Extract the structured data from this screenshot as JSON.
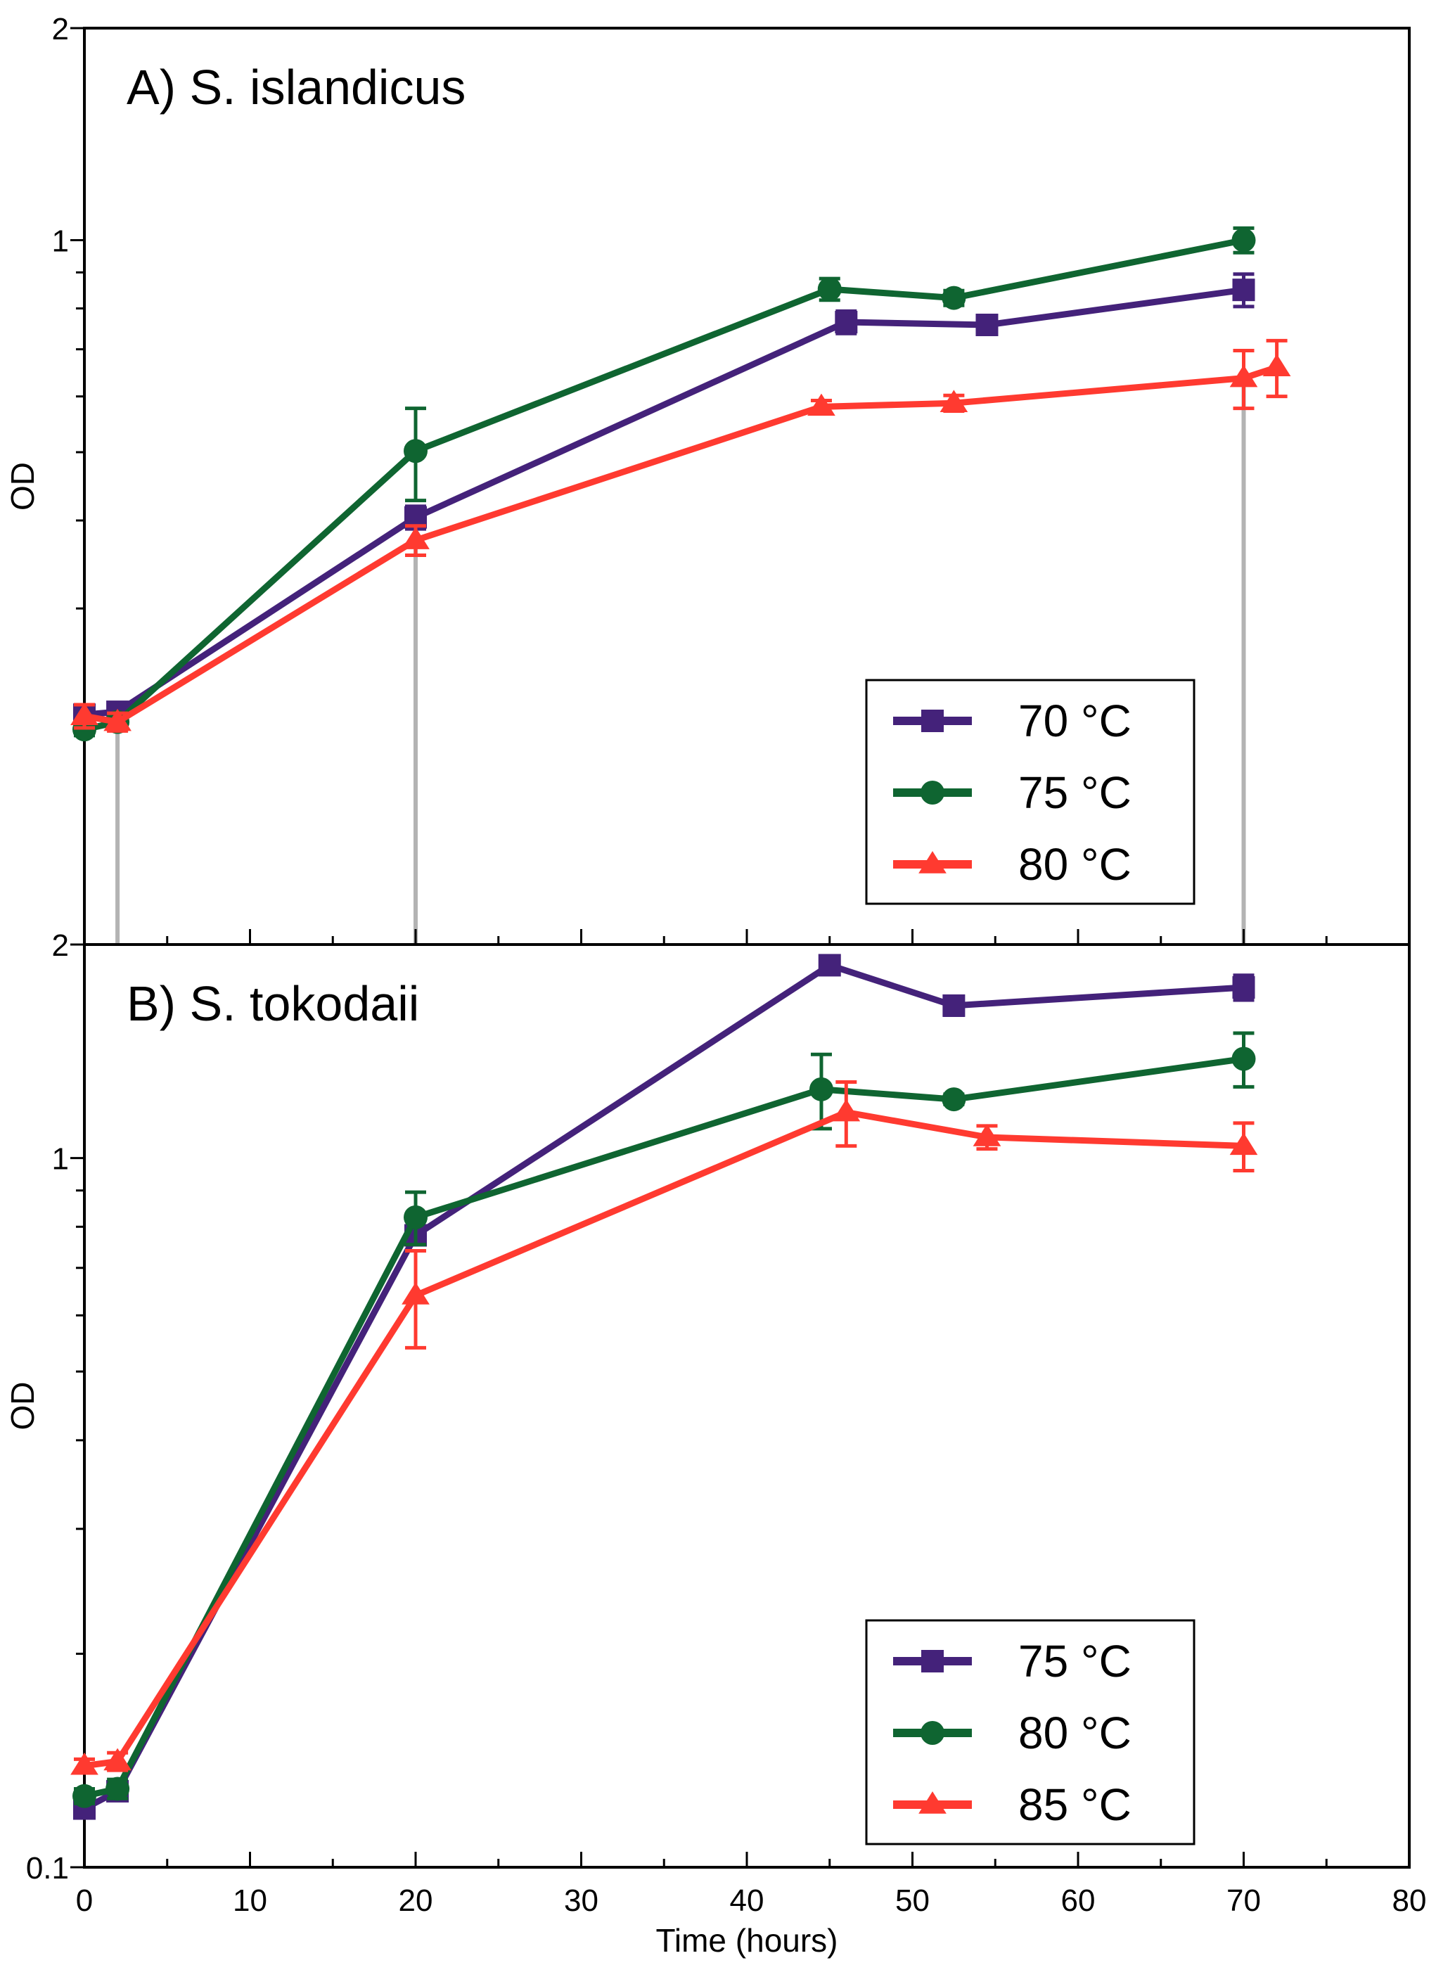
{
  "colors": {
    "series_purple": "#44227a",
    "series_green": "#0f6531",
    "series_red": "#ff3a30",
    "guide_gray": "#b3b3b3",
    "axis": "#000000"
  },
  "guide_lines_x": [
    2,
    20,
    70
  ],
  "chart_data": [
    {
      "type": "line",
      "title": "A) S. islandicus",
      "xlabel": "",
      "ylabel": "OD",
      "xlim": [
        0,
        80
      ],
      "ylim": [
        0.1,
        2
      ],
      "y_scale": "log",
      "yticks": [
        {
          "v": 1,
          "label": "1"
        },
        {
          "v": 2,
          "label": "2"
        }
      ],
      "legend_position": "bottom-right",
      "series": [
        {
          "name": "70 °C",
          "marker": "square",
          "color_key": "series_purple",
          "points": [
            {
              "x": 0,
              "y": 0.212,
              "err": 0.006
            },
            {
              "x": 2,
              "y": 0.214,
              "err": 0.006
            },
            {
              "x": 20,
              "y": 0.404,
              "err": 0.015
            },
            {
              "x": 46,
              "y": 0.765,
              "err": 0.028
            },
            {
              "x": 54.5,
              "y": 0.758,
              "err": 0.022
            },
            {
              "x": 70,
              "y": 0.85,
              "err": 0.045
            }
          ]
        },
        {
          "name": "75 °C",
          "marker": "circle",
          "color_key": "series_green",
          "points": [
            {
              "x": 0,
              "y": 0.202,
              "err": 0.004
            },
            {
              "x": 2,
              "y": 0.207,
              "err": 0.004
            },
            {
              "x": 20,
              "y": 0.502,
              "err": 0.075
            },
            {
              "x": 45,
              "y": 0.852,
              "err": 0.03
            },
            {
              "x": 52.5,
              "y": 0.828,
              "err": 0.02
            },
            {
              "x": 70,
              "y": 1.0,
              "err": 0.04
            }
          ]
        },
        {
          "name": "80 °C",
          "marker": "triangle",
          "color_key": "series_red",
          "points": [
            {
              "x": 0,
              "y": 0.211,
              "err": 0.008
            },
            {
              "x": 2,
              "y": 0.207,
              "err": 0.006
            },
            {
              "x": 20,
              "y": 0.375,
              "err": 0.018
            },
            {
              "x": 44.5,
              "y": 0.58,
              "err": 0.012
            },
            {
              "x": 52.5,
              "y": 0.587,
              "err": 0.015
            },
            {
              "x": 70,
              "y": 0.637,
              "err": 0.06
            },
            {
              "x": 72,
              "y": 0.66,
              "err": 0.06
            }
          ]
        }
      ]
    },
    {
      "type": "line",
      "title": "B) S. tokodaii",
      "xlabel": "Time (hours)",
      "ylabel": "OD",
      "xlim": [
        0,
        80
      ],
      "ylim": [
        0.1,
        2
      ],
      "y_scale": "log",
      "xticks": [
        0,
        10,
        20,
        30,
        40,
        50,
        60,
        70,
        80
      ],
      "yticks": [
        {
          "v": 0.1,
          "label": "0.1"
        },
        {
          "v": 1,
          "label": "1"
        },
        {
          "v": 2,
          "label": "2"
        }
      ],
      "legend_position": "bottom-right",
      "series": [
        {
          "name": "75 °C",
          "marker": "square",
          "color_key": "series_purple",
          "points": [
            {
              "x": 0,
              "y": 0.121,
              "err": 0.002
            },
            {
              "x": 2,
              "y": 0.128,
              "err": 0.003
            },
            {
              "x": 20,
              "y": 0.778,
              "err": 0.01
            },
            {
              "x": 45,
              "y": 1.87,
              "err": 0.03
            },
            {
              "x": 52.5,
              "y": 1.64,
              "err": 0.05
            },
            {
              "x": 70,
              "y": 1.74,
              "err": 0.07
            }
          ]
        },
        {
          "name": "80 °C",
          "marker": "circle",
          "color_key": "series_green",
          "points": [
            {
              "x": 0,
              "y": 0.126,
              "err": 0.003
            },
            {
              "x": 2,
              "y": 0.129,
              "err": 0.004
            },
            {
              "x": 20,
              "y": 0.825,
              "err": 0.07
            },
            {
              "x": 44.5,
              "y": 1.25,
              "err": 0.15
            },
            {
              "x": 52.5,
              "y": 1.21,
              "err": 0.02
            },
            {
              "x": 70,
              "y": 1.38,
              "err": 0.12
            }
          ]
        },
        {
          "name": "85 °C",
          "marker": "triangle",
          "color_key": "series_red",
          "points": [
            {
              "x": 0,
              "y": 0.139,
              "err": 0.003
            },
            {
              "x": 2,
              "y": 0.141,
              "err": 0.004
            },
            {
              "x": 20,
              "y": 0.64,
              "err": 0.1
            },
            {
              "x": 46,
              "y": 1.16,
              "err": 0.12
            },
            {
              "x": 54.5,
              "y": 1.07,
              "err": 0.04
            },
            {
              "x": 70,
              "y": 1.04,
              "err": 0.08
            }
          ]
        }
      ]
    }
  ]
}
